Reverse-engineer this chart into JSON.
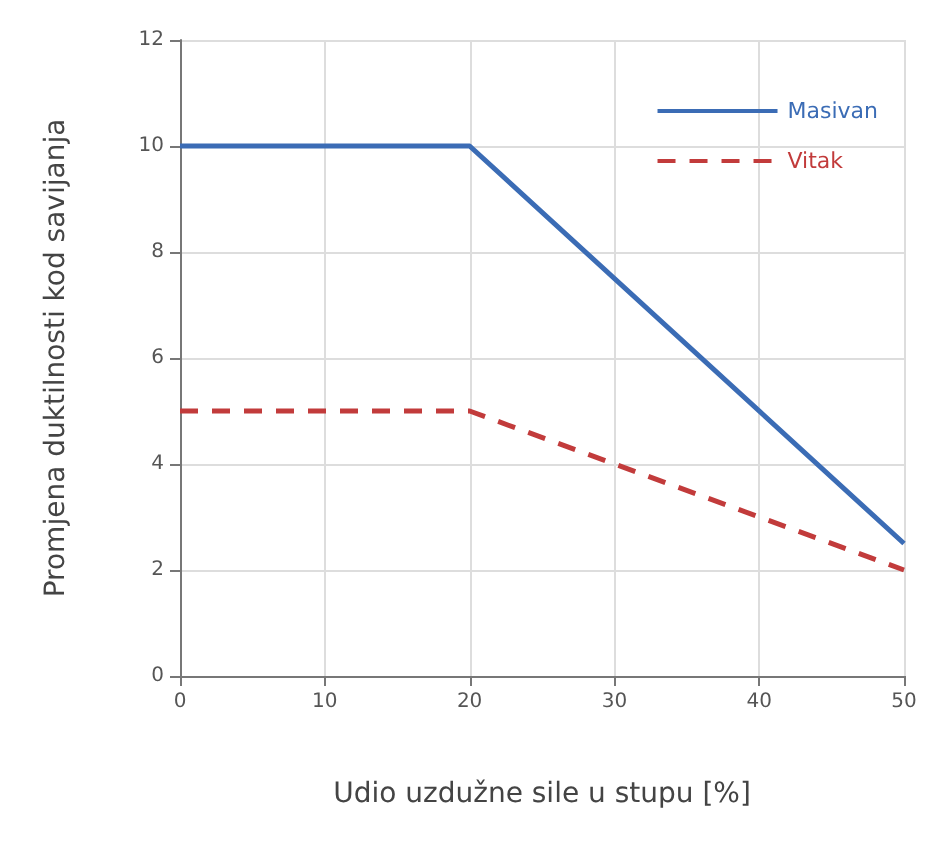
{
  "chart_data": {
    "type": "line",
    "xlabel": "Udio uzdužne sile u stupu [%]",
    "ylabel": "Promjena duktilnosti kod savijanja",
    "x": [
      0,
      20,
      50
    ],
    "series": [
      {
        "name": "Masivan",
        "color": "#3b6cb5",
        "values": [
          10,
          10,
          2.5
        ],
        "line_style": "solid"
      },
      {
        "name": "Vitak",
        "color": "#c23b3b",
        "values": [
          5,
          5,
          2
        ],
        "line_style": "dashed"
      }
    ],
    "xlim": [
      0,
      50
    ],
    "xticks": [
      0,
      10,
      20,
      30,
      40,
      50
    ],
    "ylim": [
      0,
      12
    ],
    "yticks": [
      0,
      2,
      4,
      6,
      8,
      10,
      12
    ],
    "grid": true,
    "legend": "top right",
    "marker": "none"
  }
}
